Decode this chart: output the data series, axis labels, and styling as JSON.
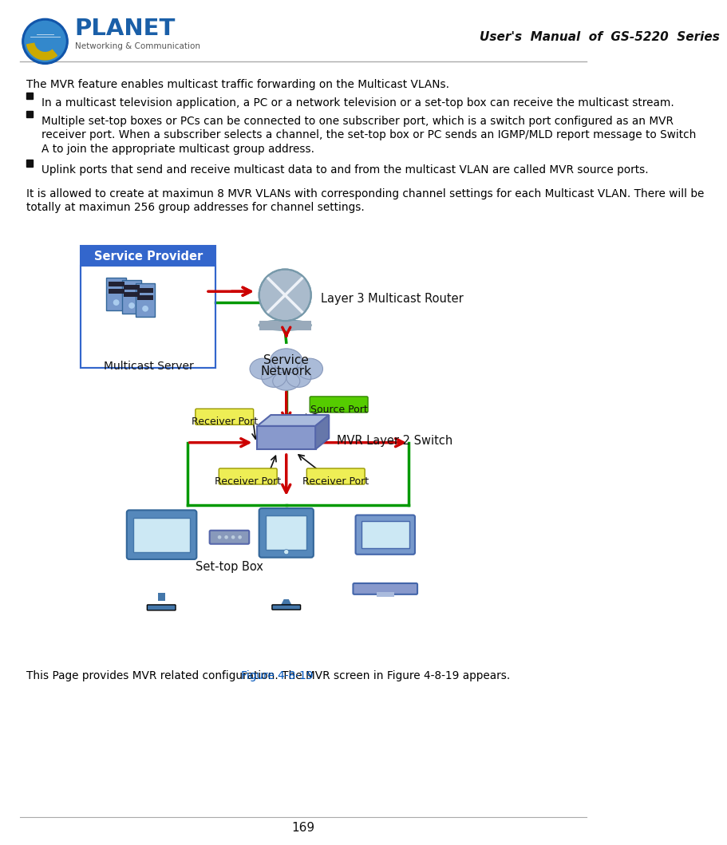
{
  "title_header": "User's  Manual  of  GS-5220  Series",
  "page_number": "169",
  "background_color": "#ffffff",
  "text_color": "#000000",
  "para1": "The MVR feature enables multicast traffic forwarding on the Multicast VLANs.",
  "bullet1": "In a multicast television application, a PC or a network television or a set-top box can receive the multicast stream.",
  "bullet2_line1": "Multiple set-top boxes or PCs can be connected to one subscriber port, which is a switch port configured as an MVR",
  "bullet2_line2": "receiver port. When a subscriber selects a channel, the set-top box or PC sends an IGMP/MLD report message to Switch",
  "bullet2_line3": "A to join the appropriate multicast group address.",
  "bullet3": "Uplink ports that send and receive multicast data to and from the multicast VLAN are called MVR source ports.",
  "para2_line1": "It is allowed to create at maximun 8 MVR VLANs with corresponding channel settings for each Multicast VLAN. There will be",
  "para2_line2": "totally at maximun 256 group addresses for channel settings.",
  "bottom_text_pre": "This Page provides MVR related configuration. The MVR screen in ",
  "bottom_text_link": "Figure 4-8-19",
  "bottom_text_post": " appears.",
  "link_color": "#0055bb",
  "service_provider_bg": "#3366cc",
  "service_provider_text": "Service Provider",
  "multicast_server_text": "Multicast Server",
  "service_network_text1": "Service",
  "service_network_text2": "Network",
  "layer3_router_text": "Layer 3 Multicast Router",
  "mvr_switch_text": "MVR Layer 2 Switch",
  "source_port_text": "Source Port",
  "receiver_port_text": "Receiver Port",
  "set_top_box_text": "Set-top Box",
  "green_color": "#009900",
  "red_color": "#cc0000",
  "source_port_bg": "#55cc00",
  "receiver_port_bg": "#eeee55",
  "server_body_color": "#7799cc",
  "server_dark": "#336699",
  "router_color": "#99bbdd",
  "cloud_color": "#99aac8",
  "switch_color": "#8899cc"
}
